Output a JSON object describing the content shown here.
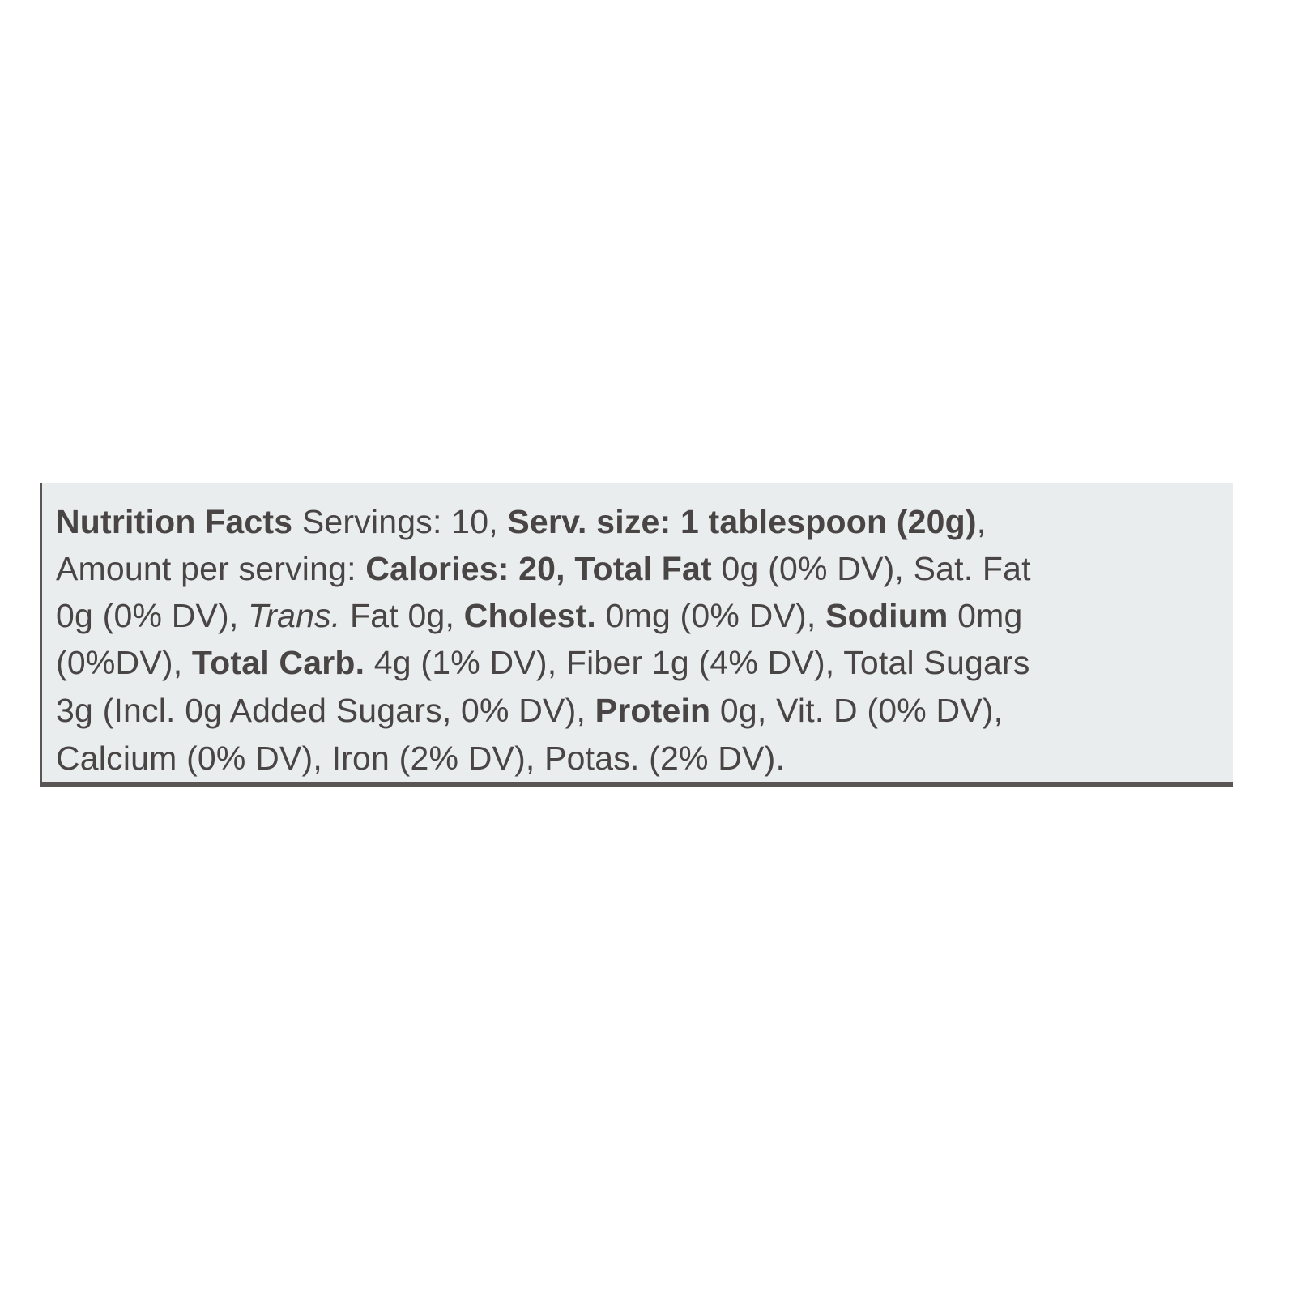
{
  "nutrition_label": {
    "lines": [
      [
        {
          "text": "Nutrition Facts",
          "style": "b"
        },
        {
          "text": " Servings: 10, ",
          "style": ""
        },
        {
          "text": "Serv. size: 1 tablespoon (20g)",
          "style": "b"
        },
        {
          "text": ",",
          "style": ""
        }
      ],
      [
        {
          "text": "Amount per serving: ",
          "style": ""
        },
        {
          "text": "Calories: 20, Total Fat",
          "style": "b"
        },
        {
          "text": " 0g (0% DV), Sat. Fat",
          "style": ""
        }
      ],
      [
        {
          "text": "0g (0% DV), ",
          "style": ""
        },
        {
          "text": "Trans.",
          "style": "i"
        },
        {
          "text": " Fat 0g, ",
          "style": ""
        },
        {
          "text": "Cholest.",
          "style": "b"
        },
        {
          "text": " 0mg (0% DV), ",
          "style": ""
        },
        {
          "text": "Sodium",
          "style": "b"
        },
        {
          "text": " 0mg",
          "style": ""
        }
      ],
      [
        {
          "text": "(0%DV), ",
          "style": ""
        },
        {
          "text": "Total Carb.",
          "style": "b"
        },
        {
          "text": " 4g (1% DV), Fiber 1g (4% DV), Total Sugars",
          "style": ""
        }
      ],
      [
        {
          "text": "3g (Incl. 0g Added Sugars, 0% DV), ",
          "style": ""
        },
        {
          "text": "Protein",
          "style": "b"
        },
        {
          "text": " 0g, Vit. D (0% DV),",
          "style": ""
        }
      ],
      [
        {
          "text": "Calcium (0% DV), Iron (2% DV), Potas. (2% DV).",
          "style": ""
        }
      ]
    ]
  }
}
